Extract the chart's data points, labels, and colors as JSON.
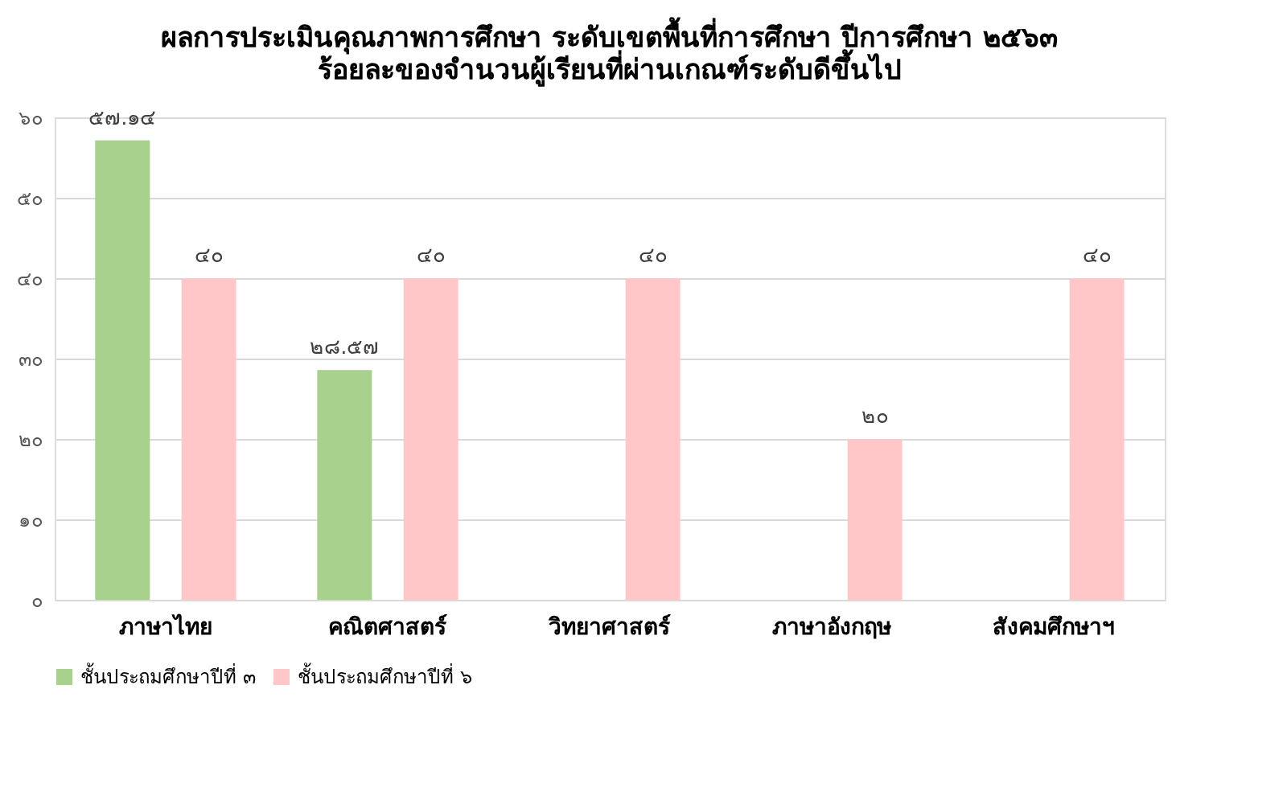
{
  "chart_data": {
    "type": "bar",
    "title": "ผลการประเมินคุณภาพการศึกษา ระดับเขตพื้นที่การศึกษา ปีการศึกษา ๒๕๖๓",
    "subtitle": "ร้อยละของจำนวนผู้เรียนที่ผ่านเกณฑ์ระดับดีขึ้นไป",
    "categories": [
      "ภาษาไทย",
      "คณิตศาสตร์",
      "วิทยาศาสตร์",
      "ภาษาอังกฤษ",
      "สังคมศึกษาฯ"
    ],
    "series": [
      {
        "name": "ชั้นประถมศึกษาปีที่ ๓",
        "color": "#a9d18e",
        "values": [
          57.14,
          28.57,
          null,
          null,
          null
        ],
        "value_labels": [
          "๕๗.๑๔",
          "๒๘.๕๗",
          null,
          null,
          null
        ]
      },
      {
        "name": "ชั้นประถมศึกษาปีที่ ๖",
        "color": "#ffc7c7",
        "values": [
          40,
          40,
          40,
          20,
          40
        ],
        "value_labels": [
          "๔๐",
          "๔๐",
          "๔๐",
          "๒๐",
          "๔๐"
        ]
      }
    ],
    "ylim": [
      0,
      60
    ],
    "yticks": [
      {
        "value": 0,
        "label": "๐"
      },
      {
        "value": 10,
        "label": "๑๐"
      },
      {
        "value": 20,
        "label": "๒๐"
      },
      {
        "value": 30,
        "label": "๓๐"
      },
      {
        "value": 40,
        "label": "๔๐"
      },
      {
        "value": 50,
        "label": "๕๐"
      },
      {
        "value": 60,
        "label": "๖๐"
      }
    ],
    "grid": "y",
    "legend": "bottom"
  }
}
